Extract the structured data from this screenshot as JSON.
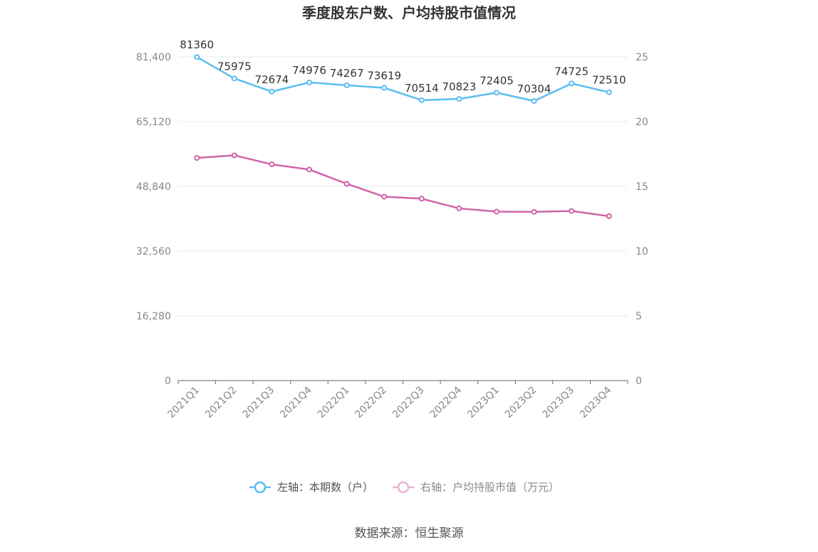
{
  "chart_data": {
    "type": "line",
    "title": "季度股东户数、户均持股市值情况",
    "categories": [
      "2021Q1",
      "2021Q2",
      "2021Q3",
      "2021Q4",
      "2022Q1",
      "2022Q2",
      "2022Q3",
      "2022Q4",
      "2023Q1",
      "2023Q2",
      "2023Q3",
      "2023Q4"
    ],
    "left_axis": {
      "ticks": [
        "0",
        "16,280",
        "32,560",
        "48,840",
        "65,120",
        "81,400"
      ],
      "min": 0,
      "max": 81400
    },
    "right_axis": {
      "ticks": [
        "0",
        "5",
        "10",
        "15",
        "20",
        "25"
      ],
      "min": 0,
      "max": 25
    },
    "series": [
      {
        "name": "左轴：本期数（户）",
        "axis": "left",
        "color": "#5bbdf0",
        "values": [
          81360,
          75975,
          72674,
          74976,
          74267,
          73619,
          70514,
          70823,
          72405,
          70304,
          74725,
          72510
        ],
        "labels": [
          "81360",
          "75975",
          "72674",
          "74976",
          "74267",
          "73619",
          "70514",
          "70823",
          "72405",
          "70304",
          "74725",
          "72510"
        ]
      },
      {
        "name": "右轴：户均持股市值（万元）",
        "axis": "right",
        "color": "#d064a8",
        "values": [
          17.2,
          17.4,
          16.7,
          16.3,
          15.2,
          14.2,
          14.05,
          13.3,
          13.05,
          13.03,
          13.1,
          12.7
        ]
      }
    ],
    "grid": true,
    "legend_position": "bottom"
  },
  "source": "数据来源：恒生聚源"
}
